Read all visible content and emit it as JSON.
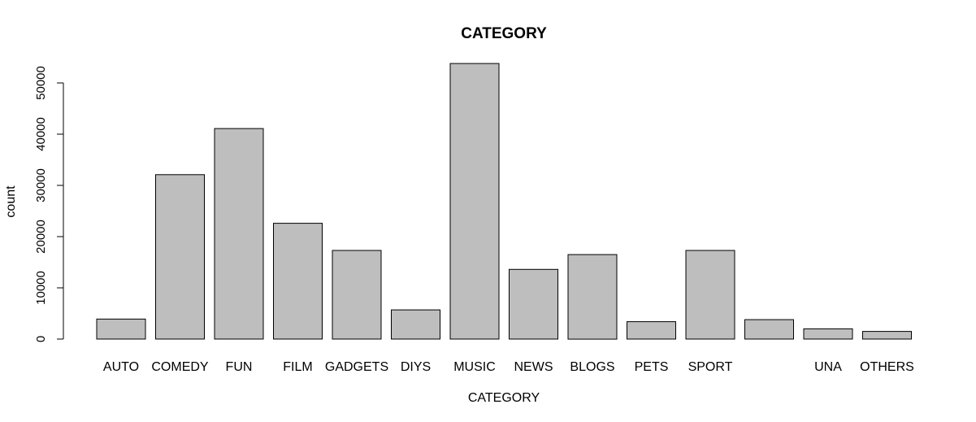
{
  "chart_data": {
    "type": "bar",
    "title": "CATEGORY",
    "xlabel": "CATEGORY",
    "ylabel": "count",
    "categories": [
      "AUTO",
      "COMEDY",
      "FUN",
      "FILM",
      "GADGETS",
      "DIYS",
      "MUSIC",
      "NEWS",
      "BLOGS",
      "PETS",
      "SPORT",
      "",
      "UNA",
      "OTHERS"
    ],
    "values": [
      3900,
      32100,
      41100,
      22600,
      17300,
      5700,
      53800,
      13600,
      16500,
      3400,
      17300,
      3800,
      2000,
      1500
    ],
    "ylim": [
      0,
      50000
    ],
    "yticks": [
      0,
      10000,
      20000,
      30000,
      40000,
      50000
    ],
    "grid": false,
    "bar_color": "#bebebe"
  }
}
